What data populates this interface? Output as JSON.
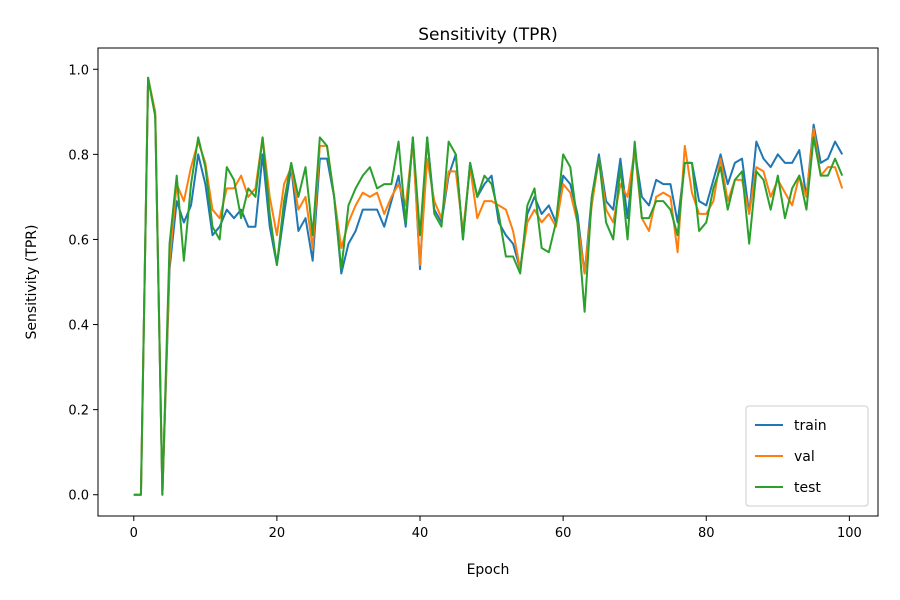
{
  "chart_data": {
    "type": "line",
    "title": "Sensitivity (TPR)",
    "xlabel": "Epoch",
    "ylabel": "Sensitivity (TPR)",
    "xlim": [
      -5,
      104
    ],
    "ylim": [
      -0.05,
      1.05
    ],
    "xticks": [
      0,
      20,
      40,
      60,
      80,
      100
    ],
    "yticks": [
      0.0,
      0.2,
      0.4,
      0.6,
      0.8,
      1.0
    ],
    "xtick_labels": [
      "0",
      "20",
      "40",
      "60",
      "80",
      "100"
    ],
    "ytick_labels": [
      "0.0",
      "0.2",
      "0.4",
      "0.6",
      "0.8",
      "1.0"
    ],
    "grid": false,
    "legend_position": "lower-right",
    "x": [
      0,
      1,
      2,
      3,
      4,
      5,
      6,
      7,
      8,
      9,
      10,
      11,
      12,
      13,
      14,
      15,
      16,
      17,
      18,
      19,
      20,
      21,
      22,
      23,
      24,
      25,
      26,
      27,
      28,
      29,
      30,
      31,
      32,
      33,
      34,
      35,
      36,
      37,
      38,
      39,
      40,
      41,
      42,
      43,
      44,
      45,
      46,
      47,
      48,
      49,
      50,
      51,
      52,
      53,
      54,
      55,
      56,
      57,
      58,
      59,
      60,
      61,
      62,
      63,
      64,
      65,
      66,
      67,
      68,
      69,
      70,
      71,
      72,
      73,
      74,
      75,
      76,
      77,
      78,
      79,
      80,
      81,
      82,
      83,
      84,
      85,
      86,
      87,
      88,
      89,
      90,
      91,
      92,
      93,
      94,
      95,
      96,
      97,
      98,
      99
    ],
    "series": [
      {
        "name": "train",
        "color": "#1f77b4",
        "values": [
          0.0,
          0.0,
          0.98,
          0.89,
          0.0,
          0.53,
          0.69,
          0.64,
          0.68,
          0.8,
          0.73,
          0.61,
          0.63,
          0.67,
          0.65,
          0.67,
          0.63,
          0.63,
          0.8,
          0.63,
          0.54,
          0.66,
          0.77,
          0.62,
          0.65,
          0.55,
          0.79,
          0.79,
          0.7,
          0.52,
          0.59,
          0.62,
          0.67,
          0.67,
          0.67,
          0.63,
          0.69,
          0.75,
          0.63,
          0.84,
          0.53,
          0.84,
          0.67,
          0.64,
          0.75,
          0.8,
          0.6,
          0.78,
          0.7,
          0.73,
          0.75,
          0.64,
          0.61,
          0.59,
          0.53,
          0.66,
          0.7,
          0.66,
          0.68,
          0.64,
          0.75,
          0.73,
          0.66,
          0.52,
          0.7,
          0.8,
          0.69,
          0.67,
          0.79,
          0.65,
          0.81,
          0.7,
          0.68,
          0.74,
          0.73,
          0.73,
          0.64,
          0.78,
          0.78,
          0.69,
          0.68,
          0.74,
          0.8,
          0.73,
          0.78,
          0.79,
          0.66,
          0.83,
          0.79,
          0.77,
          0.8,
          0.78,
          0.78,
          0.81,
          0.7,
          0.87,
          0.78,
          0.79,
          0.83,
          0.8
        ]
      },
      {
        "name": "val",
        "color": "#ff7f0e",
        "values": [
          0.0,
          0.0,
          0.98,
          0.9,
          0.0,
          0.55,
          0.73,
          0.69,
          0.77,
          0.83,
          0.78,
          0.67,
          0.65,
          0.72,
          0.72,
          0.75,
          0.7,
          0.72,
          0.84,
          0.7,
          0.61,
          0.73,
          0.77,
          0.67,
          0.7,
          0.58,
          0.82,
          0.82,
          0.7,
          0.58,
          0.64,
          0.68,
          0.71,
          0.7,
          0.71,
          0.66,
          0.7,
          0.73,
          0.68,
          0.83,
          0.54,
          0.79,
          0.69,
          0.65,
          0.76,
          0.76,
          0.62,
          0.77,
          0.65,
          0.69,
          0.69,
          0.68,
          0.67,
          0.62,
          0.53,
          0.64,
          0.67,
          0.64,
          0.66,
          0.63,
          0.73,
          0.71,
          0.64,
          0.52,
          0.68,
          0.79,
          0.67,
          0.64,
          0.73,
          0.7,
          0.81,
          0.65,
          0.62,
          0.7,
          0.71,
          0.7,
          0.57,
          0.82,
          0.71,
          0.66,
          0.66,
          0.69,
          0.79,
          0.69,
          0.74,
          0.74,
          0.66,
          0.77,
          0.76,
          0.7,
          0.74,
          0.71,
          0.68,
          0.75,
          0.7,
          0.86,
          0.75,
          0.77,
          0.77,
          0.72
        ]
      },
      {
        "name": "test",
        "color": "#2ca02c",
        "values": [
          0.0,
          0.0,
          0.98,
          0.89,
          0.0,
          0.59,
          0.75,
          0.55,
          0.73,
          0.84,
          0.77,
          0.63,
          0.6,
          0.77,
          0.74,
          0.65,
          0.72,
          0.7,
          0.84,
          0.66,
          0.54,
          0.69,
          0.78,
          0.7,
          0.77,
          0.61,
          0.84,
          0.82,
          0.7,
          0.53,
          0.68,
          0.72,
          0.75,
          0.77,
          0.72,
          0.73,
          0.73,
          0.83,
          0.64,
          0.84,
          0.61,
          0.84,
          0.66,
          0.63,
          0.83,
          0.8,
          0.6,
          0.78,
          0.7,
          0.75,
          0.73,
          0.66,
          0.56,
          0.56,
          0.52,
          0.68,
          0.72,
          0.58,
          0.57,
          0.64,
          0.8,
          0.77,
          0.64,
          0.43,
          0.7,
          0.79,
          0.64,
          0.6,
          0.77,
          0.6,
          0.83,
          0.65,
          0.65,
          0.69,
          0.69,
          0.67,
          0.61,
          0.78,
          0.78,
          0.62,
          0.64,
          0.72,
          0.77,
          0.67,
          0.74,
          0.76,
          0.59,
          0.76,
          0.74,
          0.67,
          0.75,
          0.65,
          0.72,
          0.75,
          0.67,
          0.84,
          0.75,
          0.75,
          0.79,
          0.75
        ]
      }
    ]
  }
}
